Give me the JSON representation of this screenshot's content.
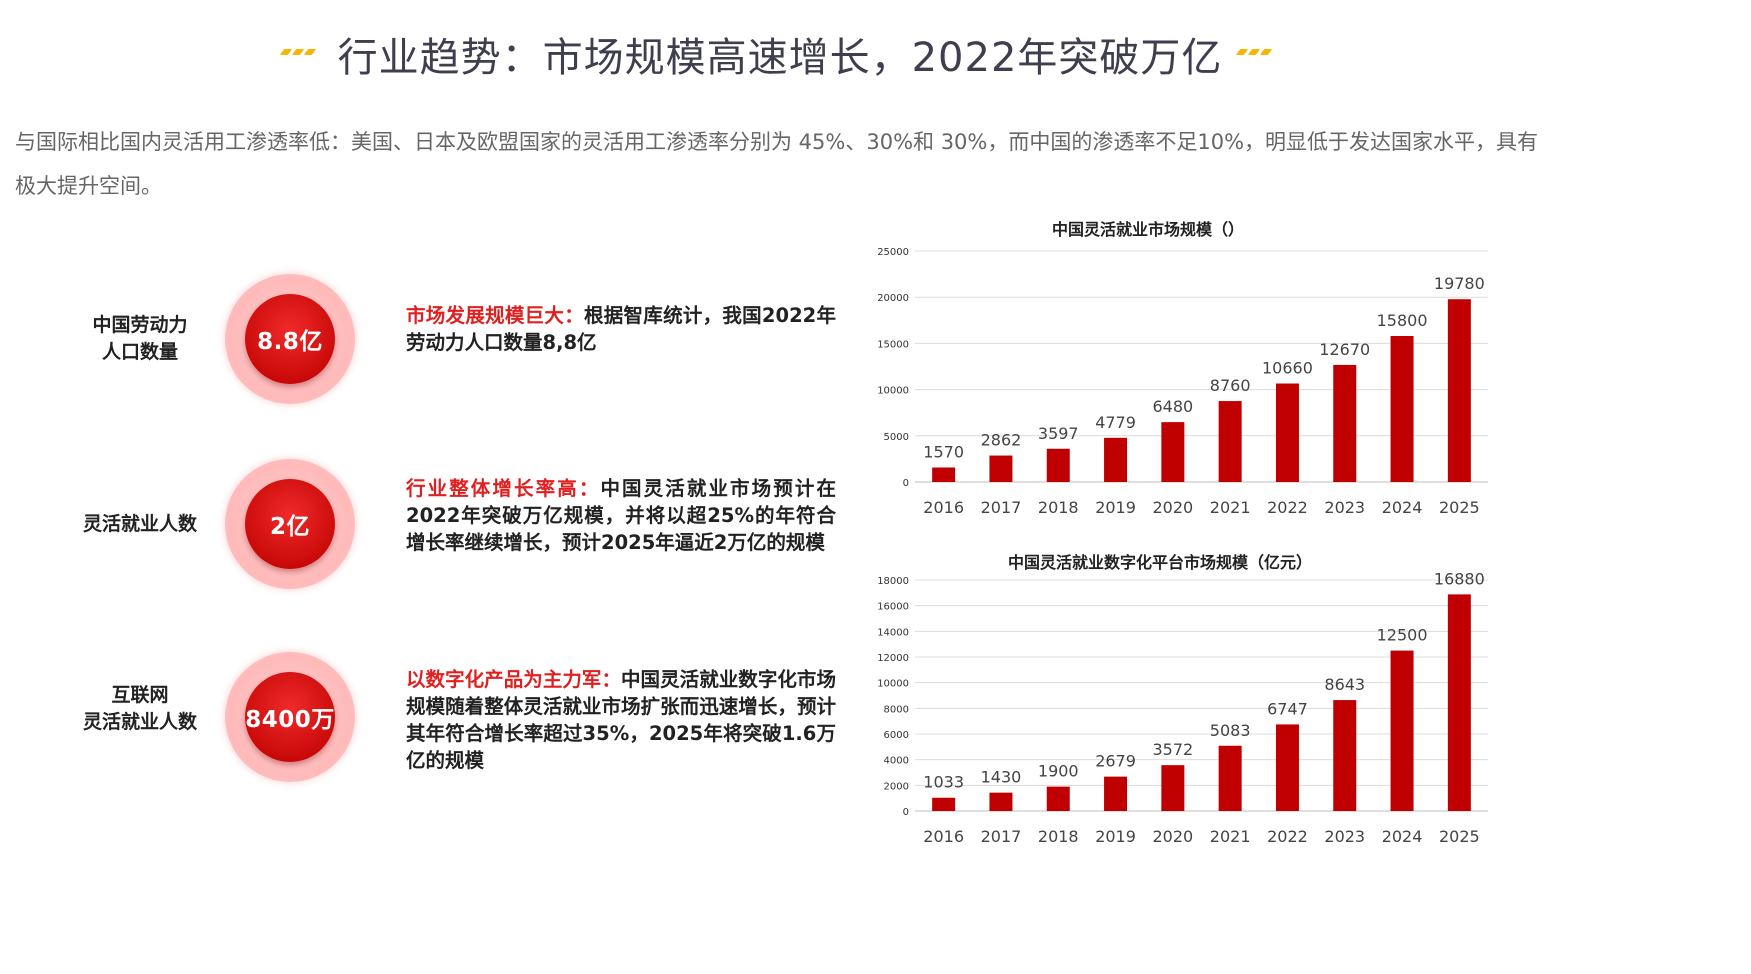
{
  "title": "行业趋势：市场规模高速增长，2022年突破万亿",
  "intro": "与国际相比国内灵活用工渗透率低：美国、日本及欧盟国家的灵活用工渗透率分别为 45%、30%和 30%，而中国的渗透率不足10%，明显低于发达国家水平，具有极大提升空间。",
  "colors": {
    "accent": "#e02020",
    "bar": "#c00000",
    "deco": "#f2b705",
    "title": "#3e3e4e"
  },
  "stats": [
    {
      "label_lines": [
        "中国劳动力",
        "人口数量"
      ],
      "value": "8.8亿",
      "headline": "市场发展规模巨大：",
      "body": "根据智库统计，我国2022年劳动力人口数量8,8亿"
    },
    {
      "label_lines": [
        "灵活就业人数"
      ],
      "value": "2亿",
      "headline": "行业整体增长率高：",
      "body": "中国灵活就业市场预计在2022年突破万亿规模，并将以超25%的年符合增长率继续增长，预计2025年逼近2万亿的规模"
    },
    {
      "label_lines": [
        "互联网",
        "灵活就业人数"
      ],
      "value": "8400万",
      "headline": "以数字化产品为主力军：",
      "body": "中国灵活就业数字化市场规模随着整体灵活就业市场扩张而迅速增长，预计其年符合增长率超过35%，2025年将突破1.6万亿的规模"
    }
  ],
  "chart_data": [
    {
      "type": "bar",
      "title": "中国灵活就业市场规模（）",
      "categories": [
        "2016",
        "2017",
        "2018",
        "2019",
        "2020",
        "2021",
        "2022",
        "2023",
        "2024",
        "2025"
      ],
      "values": [
        1570,
        2862,
        3597,
        4779,
        6480,
        8760,
        10660,
        12670,
        15800,
        19780
      ],
      "ylim": [
        0,
        25000
      ],
      "yticks": [
        0,
        5000,
        10000,
        15000,
        20000,
        25000
      ],
      "grid": true
    },
    {
      "type": "bar",
      "title": "中国灵活就业数字化平台市场规模（亿元）",
      "categories": [
        "2016",
        "2017",
        "2018",
        "2019",
        "2020",
        "2021",
        "2022",
        "2023",
        "2024",
        "2025"
      ],
      "values": [
        1033,
        1430,
        1900,
        2679,
        3572,
        5083,
        6747,
        8643,
        12500,
        16880
      ],
      "ylim": [
        0,
        18000
      ],
      "yticks": [
        0,
        2000,
        4000,
        6000,
        8000,
        10000,
        12000,
        14000,
        16000,
        18000
      ],
      "grid": true
    }
  ]
}
